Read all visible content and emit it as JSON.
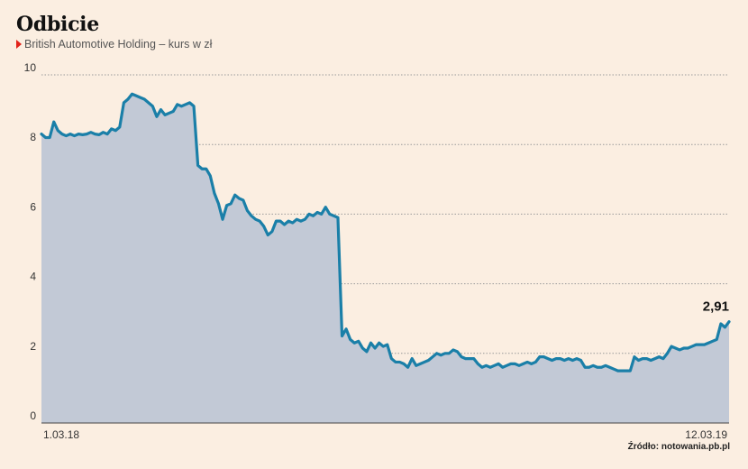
{
  "header": {
    "title": "Odbicie",
    "subtitle": "British Automotive Holding – kurs w zł"
  },
  "source": "Źródło: notowania.pb.pl",
  "colors": {
    "background": "#fbeee1",
    "line": "#1a7fa8",
    "area": "#c2c9d6",
    "grid": "#9a9a9a",
    "marker": "#e2231a"
  },
  "chart_data": {
    "type": "area",
    "title": "Odbicie",
    "subtitle": "British Automotive Holding – kurs w zł",
    "xlabel": "",
    "ylabel": "",
    "ylim": [
      0,
      10
    ],
    "yticks": [
      "0",
      "2",
      "4",
      "6",
      "8",
      "10"
    ],
    "xticks": [
      "1.03.18",
      "12.03.19"
    ],
    "grid": "horizontal dotted",
    "annotation": {
      "text": "2,91",
      "value": 2.91
    },
    "series": [
      {
        "values": [
          8.3,
          8.2,
          8.2,
          8.65,
          8.4,
          8.3,
          8.25,
          8.3,
          8.25,
          8.3,
          8.28,
          8.3,
          8.35,
          8.3,
          8.28,
          8.35,
          8.3,
          8.45,
          8.4,
          8.5,
          9.2,
          9.3,
          9.45,
          9.4,
          9.35,
          9.3,
          9.2,
          9.1,
          8.8,
          9.0,
          8.85,
          8.9,
          8.95,
          9.15,
          9.1,
          9.15,
          9.2,
          9.1,
          7.4,
          7.3,
          7.3,
          7.1,
          6.6,
          6.3,
          5.85,
          6.25,
          6.3,
          6.55,
          6.45,
          6.4,
          6.1,
          5.95,
          5.85,
          5.8,
          5.65,
          5.4,
          5.5,
          5.8,
          5.8,
          5.7,
          5.8,
          5.75,
          5.85,
          5.8,
          5.85,
          6.0,
          5.95,
          6.05,
          6.0,
          6.2,
          6.0,
          5.95,
          5.9,
          2.5,
          2.7,
          2.4,
          2.3,
          2.35,
          2.15,
          2.05,
          2.3,
          2.15,
          2.3,
          2.2,
          2.25,
          1.85,
          1.75,
          1.75,
          1.7,
          1.6,
          1.85,
          1.65,
          1.7,
          1.75,
          1.8,
          1.9,
          2.0,
          1.95,
          2.0,
          2.0,
          2.1,
          2.05,
          1.9,
          1.85,
          1.85,
          1.85,
          1.7,
          1.6,
          1.65,
          1.6,
          1.65,
          1.7,
          1.6,
          1.65,
          1.7,
          1.7,
          1.65,
          1.7,
          1.75,
          1.7,
          1.75,
          1.9,
          1.9,
          1.85,
          1.8,
          1.85,
          1.85,
          1.8,
          1.85,
          1.8,
          1.85,
          1.8,
          1.6,
          1.6,
          1.65,
          1.6,
          1.6,
          1.65,
          1.6,
          1.55,
          1.5,
          1.5,
          1.5,
          1.5,
          1.9,
          1.8,
          1.85,
          1.85,
          1.8,
          1.85,
          1.9,
          1.85,
          2.0,
          2.2,
          2.15,
          2.1,
          2.15,
          2.15,
          2.2,
          2.25,
          2.25,
          2.25,
          2.3,
          2.35,
          2.4,
          2.85,
          2.75,
          2.91
        ]
      }
    ]
  }
}
